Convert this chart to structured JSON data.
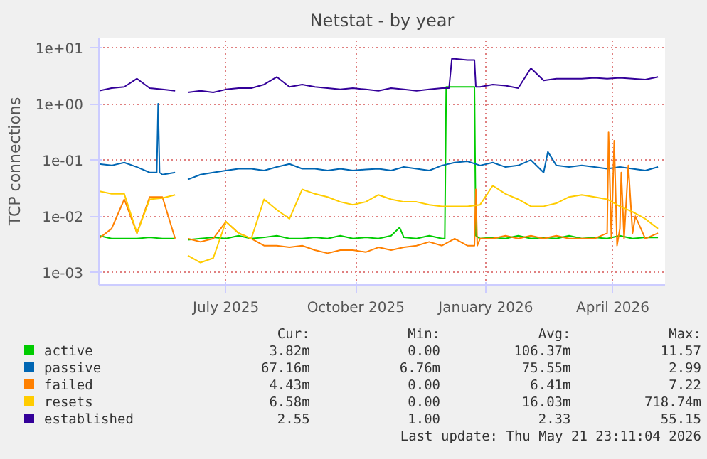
{
  "chart_data": {
    "type": "line",
    "title": "Netstat - by year",
    "ylabel": "TCP connections",
    "log": "y",
    "grid": true,
    "legend": "bottom",
    "line_style": "solid",
    "marker": "none",
    "xlim": [
      "2025-04-02",
      "2026-05-08"
    ],
    "xticks": [
      {
        "value": "2025-07-01",
        "label": "July 2025"
      },
      {
        "value": "2025-10-01",
        "label": "October 2025"
      },
      {
        "value": "2026-01-01",
        "label": "January 2026"
      },
      {
        "value": "2026-04-01",
        "label": "April 2026"
      }
    ],
    "ylim": [
      0.0006,
      15
    ],
    "yticks": [
      {
        "value": 0.001,
        "label": "1e-03"
      },
      {
        "value": 0.01,
        "label": "1e-02"
      },
      {
        "value": 0.1,
        "label": "1e-01"
      },
      {
        "value": 1,
        "label": "1e+00"
      },
      {
        "value": 10,
        "label": "1e+01"
      }
    ],
    "series": [
      {
        "name": "active",
        "color": "#00cc00",
        "x": [
          "2025-04-02",
          "2025-04-11",
          "2025-04-20",
          "2025-04-29",
          "2025-05-08",
          "2025-05-17",
          "2025-05-26",
          "2025-05-30",
          "2025-06-04",
          "2025-06-13",
          "2025-06-22",
          "2025-07-01",
          "2025-07-10",
          "2025-07-19",
          "2025-07-28",
          "2025-08-06",
          "2025-08-15",
          "2025-08-24",
          "2025-09-02",
          "2025-09-11",
          "2025-09-20",
          "2025-09-29",
          "2025-10-08",
          "2025-10-17",
          "2025-10-26",
          "2025-11-01",
          "2025-11-04",
          "2025-11-13",
          "2025-11-22",
          "2025-12-01",
          "2025-12-03",
          "2025-12-04",
          "2025-12-10",
          "2025-12-19",
          "2025-12-24",
          "2025-12-25",
          "2025-12-28",
          "2026-01-06",
          "2026-01-15",
          "2026-01-24",
          "2026-02-02",
          "2026-02-11",
          "2026-02-20",
          "2026-03-01",
          "2026-03-10",
          "2026-03-19",
          "2026-03-28",
          "2026-04-06",
          "2026-04-15",
          "2026-04-24",
          "2026-05-03"
        ],
        "values": [
          0.0045,
          0.004,
          0.004,
          0.004,
          0.0042,
          0.004,
          0.004,
          null,
          0.0038,
          0.004,
          0.0042,
          0.004,
          0.0045,
          0.004,
          0.0042,
          0.0045,
          0.004,
          0.004,
          0.0042,
          0.004,
          0.0045,
          0.004,
          0.0042,
          0.004,
          0.0045,
          0.0063,
          0.0042,
          0.004,
          0.0045,
          0.004,
          0.004,
          2.0,
          2.0,
          2.0,
          2.0,
          0.0045,
          0.004,
          0.0042,
          0.004,
          0.0045,
          0.004,
          0.0042,
          0.004,
          0.0045,
          0.004,
          0.0042,
          0.004,
          0.0045,
          0.004,
          0.0042,
          0.0042
        ]
      },
      {
        "name": "passive",
        "color": "#0066b3",
        "x": [
          "2025-04-02",
          "2025-04-11",
          "2025-04-20",
          "2025-04-29",
          "2025-05-08",
          "2025-05-13",
          "2025-05-14",
          "2025-05-15",
          "2025-05-17",
          "2025-05-26",
          "2025-05-30",
          "2025-06-04",
          "2025-06-13",
          "2025-06-22",
          "2025-07-01",
          "2025-07-10",
          "2025-07-19",
          "2025-07-28",
          "2025-08-06",
          "2025-08-15",
          "2025-08-24",
          "2025-09-02",
          "2025-09-11",
          "2025-09-20",
          "2025-09-29",
          "2025-10-08",
          "2025-10-17",
          "2025-10-26",
          "2025-11-04",
          "2025-11-13",
          "2025-11-22",
          "2025-12-01",
          "2025-12-10",
          "2025-12-19",
          "2025-12-28",
          "2026-01-06",
          "2026-01-15",
          "2026-01-24",
          "2026-02-02",
          "2026-02-11",
          "2026-02-14",
          "2026-02-20",
          "2026-03-01",
          "2026-03-10",
          "2026-03-19",
          "2026-03-28",
          "2026-04-06",
          "2026-04-15",
          "2026-04-24",
          "2026-05-03"
        ],
        "values": [
          0.085,
          0.08,
          0.09,
          0.075,
          0.06,
          0.06,
          1.0,
          0.06,
          0.055,
          0.06,
          null,
          0.045,
          0.055,
          0.06,
          0.065,
          0.07,
          0.07,
          0.065,
          0.075,
          0.085,
          0.07,
          0.07,
          0.065,
          0.07,
          0.065,
          0.068,
          0.07,
          0.065,
          0.075,
          0.07,
          0.065,
          0.08,
          0.09,
          0.095,
          0.08,
          0.09,
          0.075,
          0.08,
          0.1,
          0.06,
          0.14,
          0.08,
          0.075,
          0.08,
          0.075,
          0.07,
          0.075,
          0.07,
          0.065,
          0.075
        ]
      },
      {
        "name": "failed",
        "color": "#ff8000",
        "x": [
          "2025-04-02",
          "2025-04-11",
          "2025-04-20",
          "2025-04-29",
          "2025-05-08",
          "2025-05-17",
          "2025-05-26",
          "2025-05-30",
          "2025-06-04",
          "2025-06-13",
          "2025-06-22",
          "2025-07-01",
          "2025-07-10",
          "2025-07-19",
          "2025-07-28",
          "2025-08-06",
          "2025-08-15",
          "2025-08-24",
          "2025-09-02",
          "2025-09-11",
          "2025-09-20",
          "2025-09-29",
          "2025-10-08",
          "2025-10-17",
          "2025-10-26",
          "2025-11-04",
          "2025-11-13",
          "2025-11-22",
          "2025-12-01",
          "2025-12-10",
          "2025-12-19",
          "2025-12-24",
          "2025-12-25",
          "2025-12-26",
          "2025-12-28",
          "2026-01-06",
          "2026-01-15",
          "2026-01-24",
          "2026-02-02",
          "2026-02-11",
          "2026-02-20",
          "2026-03-01",
          "2026-03-10",
          "2026-03-19",
          "2026-03-28",
          "2026-03-29",
          "2026-03-31",
          "2026-04-02",
          "2026-04-04",
          "2026-04-06",
          "2026-04-07",
          "2026-04-09",
          "2026-04-12",
          "2026-04-15",
          "2026-04-17",
          "2026-04-24",
          "2026-05-03"
        ],
        "values": [
          0.004,
          0.006,
          0.02,
          0.005,
          0.022,
          0.022,
          0.004,
          null,
          0.004,
          0.0035,
          0.004,
          0.008,
          0.005,
          0.004,
          0.003,
          0.003,
          0.0028,
          0.003,
          0.0025,
          0.0022,
          0.0025,
          0.0025,
          0.0023,
          0.0028,
          0.0025,
          0.0028,
          0.003,
          0.0035,
          0.003,
          0.004,
          0.003,
          0.003,
          0.03,
          0.003,
          0.004,
          0.004,
          0.0045,
          0.004,
          0.0045,
          0.004,
          0.0045,
          0.004,
          0.004,
          0.004,
          0.005,
          0.31,
          0.004,
          0.22,
          0.003,
          0.006,
          0.06,
          0.004,
          0.08,
          0.005,
          0.01,
          0.004,
          0.005
        ]
      },
      {
        "name": "resets",
        "color": "#ffcc00",
        "x": [
          "2025-04-02",
          "2025-04-11",
          "2025-04-20",
          "2025-04-29",
          "2025-05-08",
          "2025-05-17",
          "2025-05-26",
          "2025-05-30",
          "2025-06-04",
          "2025-06-13",
          "2025-06-22",
          "2025-07-01",
          "2025-07-10",
          "2025-07-19",
          "2025-07-28",
          "2025-08-06",
          "2025-08-15",
          "2025-08-24",
          "2025-09-02",
          "2025-09-11",
          "2025-09-20",
          "2025-09-29",
          "2025-10-08",
          "2025-10-17",
          "2025-10-26",
          "2025-11-04",
          "2025-11-13",
          "2025-11-22",
          "2025-12-01",
          "2025-12-10",
          "2025-12-19",
          "2025-12-28",
          "2026-01-06",
          "2026-01-15",
          "2026-01-24",
          "2026-02-02",
          "2026-02-11",
          "2026-02-20",
          "2026-03-01",
          "2026-03-10",
          "2026-03-19",
          "2026-03-28",
          "2026-04-06",
          "2026-04-15",
          "2026-04-24",
          "2026-05-03"
        ],
        "values": [
          0.028,
          0.025,
          0.025,
          0.005,
          0.02,
          0.021,
          0.024,
          null,
          0.002,
          0.0015,
          0.0018,
          0.008,
          0.005,
          0.004,
          0.02,
          0.013,
          0.009,
          0.03,
          0.025,
          0.022,
          0.018,
          0.016,
          0.018,
          0.024,
          0.02,
          0.018,
          0.018,
          0.016,
          0.015,
          0.015,
          0.015,
          0.016,
          0.035,
          0.025,
          0.02,
          0.015,
          0.015,
          0.017,
          0.022,
          0.024,
          0.022,
          0.02,
          0.015,
          0.012,
          0.009,
          0.006
        ]
      },
      {
        "name": "established",
        "color": "#330099",
        "x": [
          "2025-04-02",
          "2025-04-11",
          "2025-04-20",
          "2025-04-29",
          "2025-05-08",
          "2025-05-17",
          "2025-05-26",
          "2025-05-30",
          "2025-06-04",
          "2025-06-13",
          "2025-06-22",
          "2025-07-01",
          "2025-07-10",
          "2025-07-19",
          "2025-07-28",
          "2025-08-06",
          "2025-08-15",
          "2025-08-24",
          "2025-09-02",
          "2025-09-11",
          "2025-09-20",
          "2025-09-29",
          "2025-10-08",
          "2025-10-17",
          "2025-10-26",
          "2025-11-04",
          "2025-11-13",
          "2025-11-22",
          "2025-12-01",
          "2025-12-06",
          "2025-12-08",
          "2025-12-10",
          "2025-12-19",
          "2025-12-24",
          "2025-12-25",
          "2025-12-28",
          "2026-01-06",
          "2026-01-15",
          "2026-01-24",
          "2026-02-02",
          "2026-02-11",
          "2026-02-20",
          "2026-03-01",
          "2026-03-10",
          "2026-03-19",
          "2026-03-28",
          "2026-04-06",
          "2026-04-15",
          "2026-04-24",
          "2026-05-03"
        ],
        "values": [
          1.7,
          1.9,
          2.0,
          2.8,
          1.9,
          1.8,
          1.7,
          null,
          1.6,
          1.7,
          1.6,
          1.8,
          1.9,
          1.9,
          2.2,
          3.0,
          2.0,
          2.2,
          2.0,
          1.9,
          1.8,
          1.9,
          1.8,
          1.7,
          1.9,
          1.8,
          1.7,
          1.8,
          1.9,
          1.9,
          6.3,
          6.3,
          6.0,
          6.0,
          2.0,
          2.0,
          2.2,
          2.1,
          1.9,
          4.3,
          2.6,
          2.8,
          2.8,
          2.8,
          2.9,
          2.8,
          2.9,
          2.8,
          2.7,
          3.0
        ]
      }
    ],
    "annotations": [
      "Cur:",
      "Min:",
      "Avg:",
      "Max:",
      "3.82m",
      "0.00",
      "106.37m",
      "11.57",
      "67.16m",
      "6.76m",
      "75.55m",
      "2.99",
      "4.43m",
      "0.00",
      "6.41m",
      "7.22",
      "6.58m",
      "0.00",
      "16.03m",
      "718.74m",
      "2.55",
      "1.00",
      "2.33",
      "55.15",
      "Last update: Thu May 21 23:11:04 2026"
    ]
  }
}
